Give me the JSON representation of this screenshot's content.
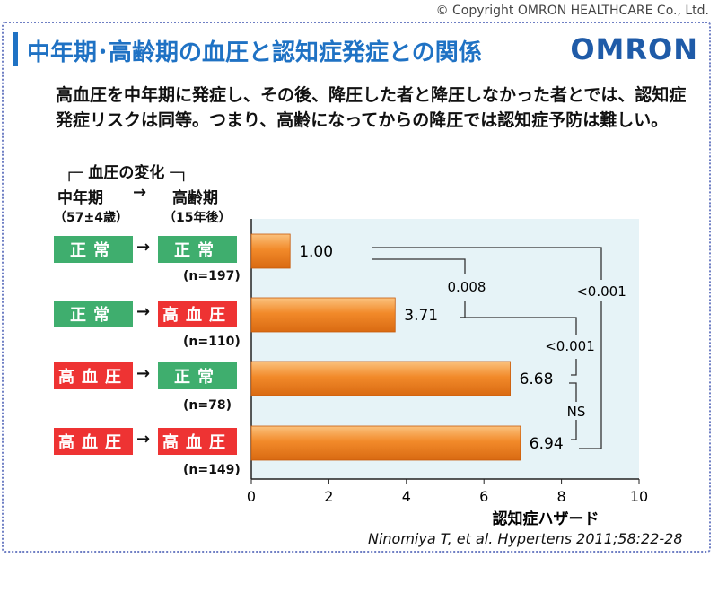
{
  "copyright": "© Copyright OMRON HEALTHCARE Co., Ltd.",
  "title": "中年期･高齢期の血圧と認知症発症との関係",
  "logo": "OMRON",
  "subtitle": "高血圧を中年期に発症し、その後、降圧した者と降圧しなかった者とでは、認知症発症リスクは同等。つまり、高齢になってからの降圧では認知症予防は難しい。",
  "bp_change_label": "血圧の変化",
  "columns": {
    "midlife": {
      "label": "中年期",
      "sub": "（57±4歳）"
    },
    "arrow": "→",
    "elderly": {
      "label": "高齢期",
      "sub": "（15年後）"
    }
  },
  "groups": [
    {
      "midlife": "正常",
      "midlife_status": "normal",
      "elderly": "正常",
      "elderly_status": "normal",
      "n": "(n=197)"
    },
    {
      "midlife": "正常",
      "midlife_status": "normal",
      "elderly": "高血圧",
      "elderly_status": "high",
      "n": "(n=110)"
    },
    {
      "midlife": "高血圧",
      "midlife_status": "high",
      "elderly": "正常",
      "elderly_status": "normal",
      "n": "(n=78)"
    },
    {
      "midlife": "高血圧",
      "midlife_status": "high",
      "elderly": "高血圧",
      "elderly_status": "high",
      "n": "(n=149)"
    }
  ],
  "citation": "Ninomiya T, et al. Hypertens 2011;58:22-28",
  "colors": {
    "bar": "#f28a2a",
    "plot_bg": "#e6f3f7",
    "normal": "#3fae6e",
    "high": "#ee3333",
    "title": "#1f72c4"
  },
  "chart_data": {
    "type": "bar",
    "orientation": "horizontal",
    "categories": [
      "正常→正常",
      "正常→高血圧",
      "高血圧→正常",
      "高血圧→高血圧"
    ],
    "values": [
      1.0,
      3.71,
      6.68,
      6.94
    ],
    "value_labels": [
      "1.00",
      "3.71",
      "6.68",
      "6.94"
    ],
    "xlabel": "認知症ハザード",
    "xlim": [
      0,
      10
    ],
    "xticks": [
      0,
      2,
      4,
      6,
      8,
      10
    ],
    "comparisons": [
      {
        "from": 0,
        "to": 1,
        "label": "0.008"
      },
      {
        "from": 1,
        "to": 3,
        "label": "<0.001"
      },
      {
        "from": 2,
        "to": 3,
        "label": "NS"
      },
      {
        "from": 0,
        "to": 3,
        "label": "<0.001"
      }
    ]
  }
}
